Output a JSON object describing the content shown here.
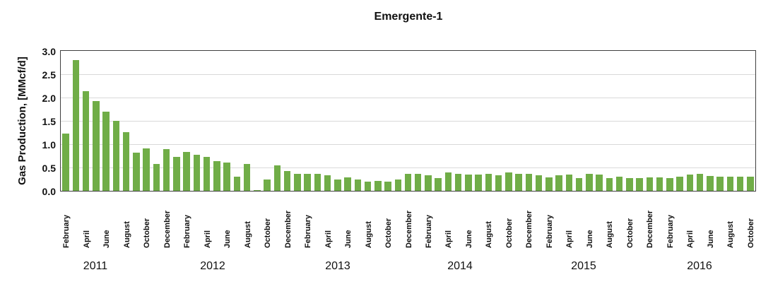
{
  "chart_data": {
    "type": "bar",
    "title": "Emergente-1",
    "ylabel": "Gas Production, [MMcf/d]",
    "xlabel": "",
    "ylim": [
      0,
      3.0
    ],
    "ytick_labels": [
      "3.0",
      "2.5",
      "2.0",
      "1.5",
      "1.0",
      "0.5",
      "0.0"
    ],
    "grid": "horizontal",
    "legend": "none",
    "bar_color": "#70AD47",
    "axis_border_color": "#3f3f3f",
    "gridline_color": "#d9d9d9",
    "month_label_every": 2,
    "categories": [
      "February 2011",
      "March 2011",
      "April 2011",
      "May 2011",
      "June 2011",
      "July 2011",
      "August 2011",
      "September 2011",
      "October 2011",
      "November 2011",
      "December 2011",
      "January 2012",
      "February 2012",
      "March 2012",
      "April 2012",
      "May 2012",
      "June 2012",
      "July 2012",
      "August 2012",
      "September 2012",
      "October 2012",
      "November 2012",
      "December 2012",
      "January 2013",
      "February 2013",
      "March 2013",
      "April 2013",
      "May 2013",
      "June 2013",
      "July 2013",
      "August 2013",
      "September 2013",
      "October 2013",
      "November 2013",
      "December 2013",
      "January 2014",
      "February 2014",
      "March 2014",
      "April 2014",
      "May 2014",
      "June 2014",
      "July 2014",
      "August 2014",
      "September 2014",
      "October 2014",
      "November 2014",
      "December 2014",
      "January 2015",
      "February 2015",
      "March 2015",
      "April 2015",
      "May 2015",
      "June 2015",
      "July 2015",
      "August 2015",
      "September 2015",
      "October 2015",
      "November 2015",
      "December 2015",
      "January 2016",
      "February 2016",
      "March 2016",
      "April 2016",
      "May 2016",
      "June 2016",
      "July 2016",
      "August 2016",
      "September 2016",
      "October 2016"
    ],
    "values": [
      1.23,
      2.8,
      2.13,
      1.93,
      1.7,
      1.5,
      1.26,
      0.82,
      0.91,
      0.58,
      0.89,
      0.72,
      0.84,
      0.78,
      0.73,
      0.63,
      0.6,
      0.31,
      0.58,
      0.02,
      0.24,
      0.54,
      0.42,
      0.36,
      0.37,
      0.37,
      0.34,
      0.25,
      0.29,
      0.24,
      0.19,
      0.21,
      0.2,
      0.24,
      0.37,
      0.36,
      0.33,
      0.28,
      0.4,
      0.37,
      0.35,
      0.35,
      0.36,
      0.33,
      0.4,
      0.36,
      0.37,
      0.33,
      0.29,
      0.33,
      0.35,
      0.28,
      0.36,
      0.35,
      0.28,
      0.31,
      0.28,
      0.28,
      0.29,
      0.29,
      0.28,
      0.31,
      0.35,
      0.37,
      0.32,
      0.31,
      0.31,
      0.31,
      0.31
    ],
    "year_labels": [
      "2011",
      "2012",
      "2013",
      "2014",
      "2015",
      "2016"
    ]
  }
}
